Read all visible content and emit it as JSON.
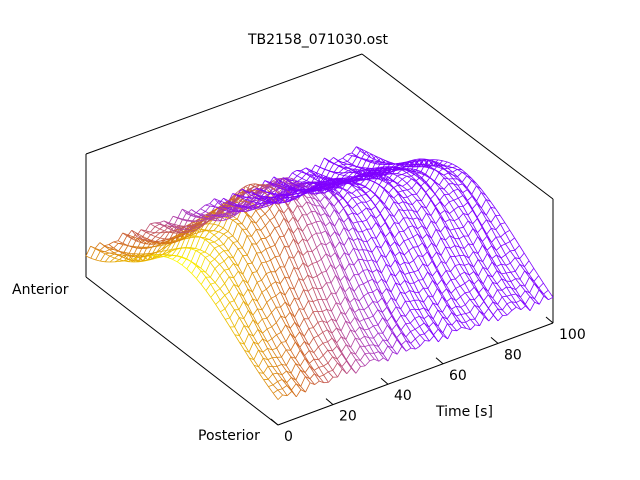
{
  "chart_data": {
    "type": "surface",
    "title": "TB2158_071030.ost",
    "xlabel": "Time [s]",
    "ylabel_low": "Posterior",
    "ylabel_high": "Anterior",
    "xlim": [
      0,
      100
    ],
    "x_ticks": [
      "0",
      "20",
      "40",
      "60",
      "80",
      "100"
    ],
    "grid": false,
    "colormap": [
      "#7f00ff",
      "#b040b0",
      "#d0661f",
      "#e8b000",
      "#ffff00"
    ]
  }
}
